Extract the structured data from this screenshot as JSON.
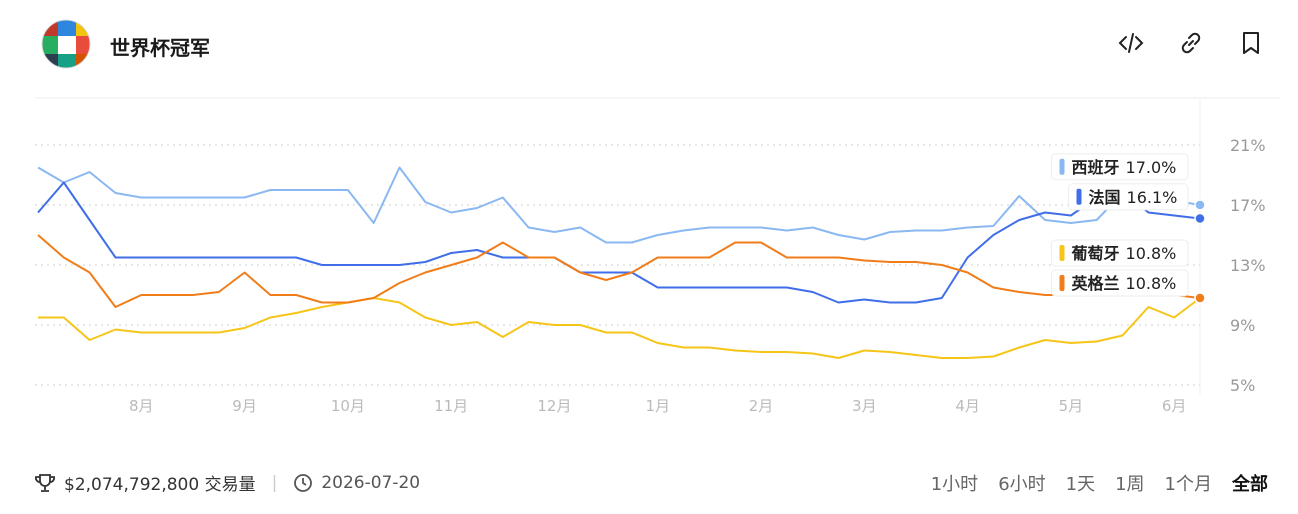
{
  "header": {
    "title": "世界杯冠军"
  },
  "footer": {
    "volume": "$2,074,792,800 交易量",
    "date": "2026-07-20",
    "ranges": [
      "1小时",
      "6小时",
      "1天",
      "1周",
      "1个月",
      "全部"
    ],
    "active_range": "全部"
  },
  "chart_data": {
    "type": "line",
    "categories": [
      null,
      null,
      null,
      null,
      "8月",
      null,
      null,
      null,
      "9月",
      null,
      null,
      null,
      "10月",
      null,
      null,
      null,
      "11月",
      null,
      null,
      null,
      "12月",
      null,
      null,
      null,
      "1月",
      null,
      null,
      null,
      "2月",
      null,
      null,
      null,
      "3月",
      null,
      null,
      null,
      "4月",
      null,
      null,
      null,
      "5月",
      null,
      null,
      null,
      "6月",
      null
    ],
    "ylim": [
      4.3,
      24
    ],
    "yticks": [
      {
        "value": 5,
        "label": "5%"
      },
      {
        "value": 9,
        "label": "9%"
      },
      {
        "value": 13,
        "label": "13%"
      },
      {
        "value": 17,
        "label": "17%"
      },
      {
        "value": 21,
        "label": "21%"
      }
    ],
    "grid": true,
    "series": [
      {
        "name": "西班牙",
        "color": "#8ab8f2",
        "current_label": "17.0%",
        "values": [
          19.5,
          18.5,
          19.2,
          17.8,
          17.5,
          17.5,
          17.5,
          17.5,
          17.5,
          18.0,
          18.0,
          18.0,
          18.0,
          15.8,
          19.5,
          17.2,
          16.5,
          16.8,
          17.5,
          15.5,
          15.2,
          15.5,
          14.5,
          14.5,
          15.0,
          15.3,
          15.5,
          15.5,
          15.5,
          15.3,
          15.5,
          15.0,
          14.7,
          15.2,
          15.3,
          15.3,
          15.5,
          15.6,
          17.6,
          16.0,
          15.8,
          16.0,
          17.8,
          17.5,
          17.3,
          17.0
        ]
      },
      {
        "name": "法国",
        "color": "#3f6ee8",
        "current_label": "16.1%",
        "values": [
          16.5,
          18.5,
          16.0,
          13.5,
          13.5,
          13.5,
          13.5,
          13.5,
          13.5,
          13.5,
          13.5,
          13.0,
          13.0,
          13.0,
          13.0,
          13.2,
          13.8,
          14.0,
          13.5,
          13.5,
          13.5,
          12.5,
          12.5,
          12.5,
          11.5,
          11.5,
          11.5,
          11.5,
          11.5,
          11.5,
          11.2,
          10.5,
          10.7,
          10.5,
          10.5,
          10.8,
          13.5,
          15.0,
          16.0,
          16.5,
          16.3,
          17.5,
          18.0,
          16.5,
          16.3,
          16.1
        ]
      },
      {
        "name": "葡萄牙",
        "color": "#f5c518",
        "current_label": "10.8%",
        "values": [
          9.5,
          9.5,
          8.0,
          8.7,
          8.5,
          8.5,
          8.5,
          8.5,
          8.8,
          9.5,
          9.8,
          10.2,
          10.5,
          10.8,
          10.5,
          9.5,
          9.0,
          9.2,
          8.2,
          9.2,
          9.0,
          9.0,
          8.5,
          8.5,
          7.8,
          7.5,
          7.5,
          7.3,
          7.2,
          7.2,
          7.1,
          6.8,
          7.3,
          7.2,
          7.0,
          6.8,
          6.8,
          6.9,
          7.5,
          8.0,
          7.8,
          7.9,
          8.3,
          10.2,
          9.5,
          10.8
        ]
      },
      {
        "name": "英格兰",
        "color": "#f07d1a",
        "current_label": "10.8%",
        "values": [
          15.0,
          13.5,
          12.5,
          10.2,
          11.0,
          11.0,
          11.0,
          11.2,
          12.5,
          11.0,
          11.0,
          10.5,
          10.5,
          10.8,
          11.8,
          12.5,
          13.0,
          13.5,
          14.5,
          13.5,
          13.5,
          12.5,
          12.0,
          12.5,
          13.5,
          13.5,
          13.5,
          14.5,
          14.5,
          13.5,
          13.5,
          13.5,
          13.3,
          13.2,
          13.2,
          13.0,
          12.5,
          11.5,
          11.2,
          11.0,
          11.0,
          11.0,
          11.0,
          11.0,
          11.0,
          10.8
        ]
      }
    ]
  }
}
